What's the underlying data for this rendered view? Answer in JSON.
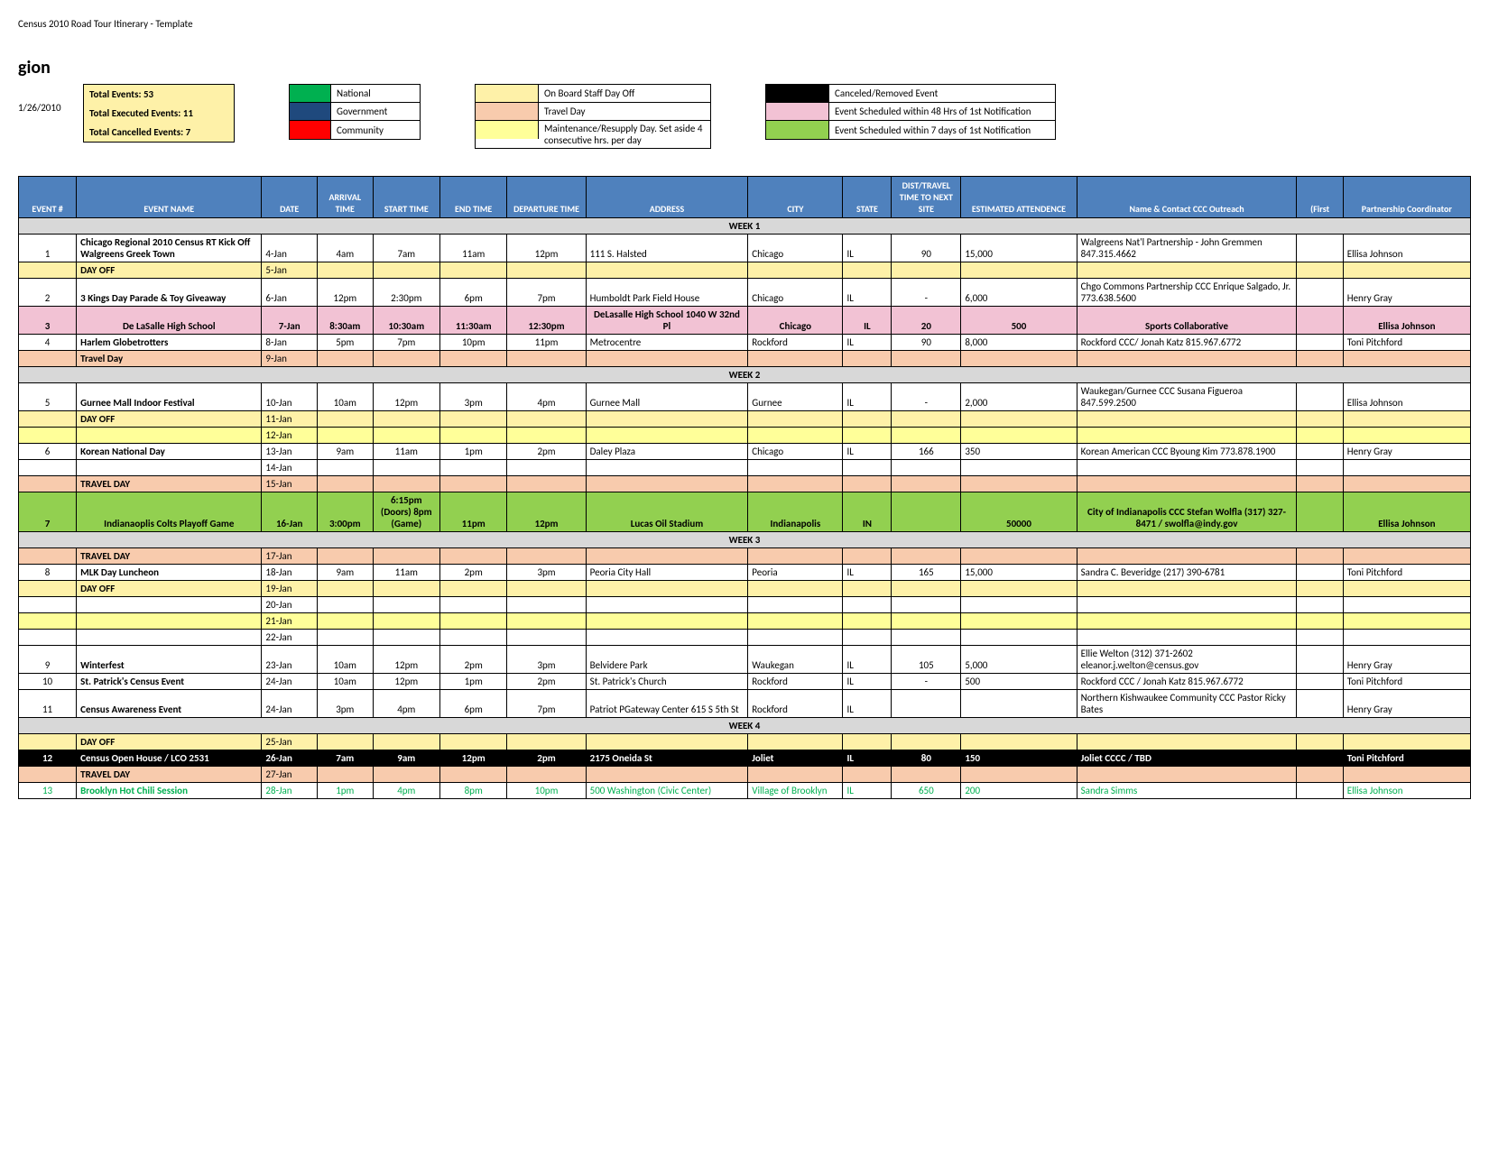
{
  "title": "Census 2010 Road Tour Itinerary - Template",
  "region_label": "gion",
  "date_stamp": "1/26/2010",
  "totals": {
    "total_events": "Total Events:  53",
    "executed": "Total Executed Events:  11",
    "cancelled": "Total Cancelled Events:  7"
  },
  "legend1": [
    {
      "color": "#00b050",
      "label": "National"
    },
    {
      "color": "#1f497d",
      "label": "Government"
    },
    {
      "color": "#ff0000",
      "label": "Community"
    }
  ],
  "legend2": [
    {
      "color": "#fef1a8",
      "label": "On Board Staff Day Off"
    },
    {
      "color": "#f8cbad",
      "label": "Travel Day"
    },
    {
      "color": "#ffff99",
      "label": "Maintenance/Resupply Day.  Set aside 4 consecutive hrs. per day"
    }
  ],
  "legend3": [
    {
      "color": "#000000",
      "label": "Canceled/Removed Event"
    },
    {
      "color": "#f2c2d4",
      "label": "Event Scheduled within 48 Hrs of 1st Notification"
    },
    {
      "color": "#92d050",
      "label": "Event Scheduled within 7 days of 1st Notification"
    }
  ],
  "columns": [
    "EVENT #",
    "EVENT NAME",
    "DATE",
    "ARRIVAL TIME",
    "START TIME",
    "END TIME",
    "DEPARTURE TIME",
    "ADDRESS",
    "CITY",
    "STATE",
    "DIST/TRAVEL TIME TO NEXT SITE",
    "ESTIMATED ATTENDENCE",
    "Name & Contact CCC Outreach",
    "(First",
    "Partnership Coordinator"
  ],
  "colors": {
    "dayoff": "#fef1a8",
    "travel": "#f8cbad",
    "maint": "#ffff99",
    "pink": "#f2c2d4",
    "green": "#92d050",
    "black": "#000000",
    "gray": "#d8d8d8",
    "header": "#4f81bd"
  },
  "weeks": [
    {
      "label": "WEEK 1",
      "rows": [
        {
          "type": "event",
          "bg": "",
          "num": "1",
          "name": "Chicago Regional 2010 Census RT Kick Off Walgreens Greek Town",
          "date": "4-Jan",
          "arr": "4am",
          "start": "7am",
          "end": "11am",
          "dep": "12pm",
          "addr": "111 S. Halsted",
          "city": "Chicago",
          "state": "IL",
          "dist": "90",
          "att": "15,000",
          "contact": "Walgreens Nat'l Partnership - John Gremmen 847.315.4662",
          "first": "",
          "coord": "Ellisa Johnson",
          "bold": true
        },
        {
          "type": "dayoff",
          "name": "DAY OFF",
          "date": "5-Jan"
        },
        {
          "type": "event",
          "bg": "",
          "num": "2",
          "name": "3 Kings Day Parade & Toy Giveaway",
          "date": "6-Jan",
          "arr": "12pm",
          "start": "2:30pm",
          "end": "6pm",
          "dep": "7pm",
          "addr": "Humboldt Park Field House",
          "city": "Chicago",
          "state": "IL",
          "dist": "-",
          "att": "6,000",
          "contact": "Chgo Commons Partnership CCC Enrique Salgado, Jr. 773.638.5600",
          "first": "",
          "coord": "Henry Gray",
          "bold": true
        },
        {
          "type": "event",
          "bg": "pink",
          "num": "3",
          "name": "De  LaSalle High School",
          "date": "7-Jan",
          "arr": "8:30am",
          "start": "10:30am",
          "end": "11:30am",
          "dep": "12:30pm",
          "addr": "DeLasalle High School 1040 W 32nd Pl",
          "city": "Chicago",
          "state": "IL",
          "dist": "20",
          "att": "500",
          "contact": "Sports Collaborative",
          "first": "",
          "coord": "Ellisa Johnson",
          "bold": true,
          "center": true
        },
        {
          "type": "event",
          "bg": "",
          "num": "4",
          "name": "Harlem Globetrotters",
          "date": "8-Jan",
          "arr": "5pm",
          "start": "7pm",
          "end": "10pm",
          "dep": "11pm",
          "addr": "Metrocentre",
          "city": "Rockford",
          "state": "IL",
          "dist": "90",
          "att": "8,000",
          "contact": "Rockford CCC/ Jonah Katz 815.967.6772",
          "first": "",
          "coord": "Toni Pitchford",
          "bold": true
        },
        {
          "type": "travel",
          "name": "Travel Day",
          "date": "9-Jan"
        }
      ]
    },
    {
      "label": "WEEK 2",
      "rows": [
        {
          "type": "event",
          "bg": "",
          "num": "5",
          "name": "Gurnee Mall Indoor Festival",
          "date": "10-Jan",
          "arr": "10am",
          "start": "12pm",
          "end": "3pm",
          "dep": "4pm",
          "addr": "Gurnee Mall",
          "city": "Gurnee",
          "state": "IL",
          "dist": "-",
          "att": "2,000",
          "contact": "Waukegan/Gurnee CCC  Susana Figueroa 847.599.2500",
          "first": "",
          "coord": "Ellisa Johnson",
          "bold": true
        },
        {
          "type": "dayoff",
          "name": "DAY OFF",
          "date": "11-Jan"
        },
        {
          "type": "maint",
          "name": "",
          "date": "12-Jan"
        },
        {
          "type": "event",
          "bg": "",
          "num": "6",
          "name": "Korean National Day",
          "date": "13-Jan",
          "arr": "9am",
          "start": "11am",
          "end": "1pm",
          "dep": "2pm",
          "addr": "Daley Plaza",
          "city": "Chicago",
          "state": "IL",
          "dist": "166",
          "att": "350",
          "contact": "Korean American CCC Byoung Kim 773.878.1900",
          "first": "",
          "coord": "Henry Gray",
          "bold": true
        },
        {
          "type": "blank",
          "name": "",
          "date": "14-Jan"
        },
        {
          "type": "travel",
          "name": "TRAVEL DAY",
          "date": "15-Jan"
        },
        {
          "type": "event",
          "bg": "green",
          "num": "7",
          "name": "Indianaoplis Colts Playoff Game",
          "date": "16-Jan",
          "arr": "3:00pm",
          "start": "6:15pm (Doors)  8pm (Game)",
          "end": "11pm",
          "dep": "12pm",
          "addr": "Lucas Oil Stadium",
          "city": "Indianapolis",
          "state": "IN",
          "dist": "",
          "att": "50000",
          "contact": "City of Indianapolis CCC       Stefan Wolfla (317) 327-8471 / swolfla@indy.gov",
          "first": "",
          "coord": "Ellisa Johnson",
          "bold": true,
          "center": true
        }
      ]
    },
    {
      "label": "WEEK 3",
      "rows": [
        {
          "type": "travel",
          "name": "TRAVEL DAY",
          "date": "17-Jan"
        },
        {
          "type": "event",
          "bg": "",
          "num": "8",
          "name": "MLK Day Luncheon",
          "date": "18-Jan",
          "arr": "9am",
          "start": "11am",
          "end": "2pm",
          "dep": "3pm",
          "addr": "Peoria City Hall",
          "city": "Peoria",
          "state": "IL",
          "dist": "165",
          "att": "15,000",
          "contact": "Sandra C. Beveridge (217) 390-6781",
          "first": "",
          "coord": "Toni Pitchford",
          "bold": true
        },
        {
          "type": "dayoff",
          "name": "DAY OFF",
          "date": "19-Jan"
        },
        {
          "type": "blank",
          "name": "",
          "date": "20-Jan"
        },
        {
          "type": "maint",
          "name": "",
          "date": "21-Jan"
        },
        {
          "type": "blank",
          "name": "",
          "date": "22-Jan"
        },
        {
          "type": "event",
          "bg": "",
          "num": "9",
          "name": "Winterfest",
          "date": "23-Jan",
          "arr": "10am",
          "start": "12pm",
          "end": "2pm",
          "dep": "3pm",
          "addr": "Belvidere Park",
          "city": "Waukegan",
          "state": "IL",
          "dist": "105",
          "att": "5,000",
          "contact": "Ellie Welton (312) 371-2602 eleanor.j.welton@census.gov",
          "first": "",
          "coord": "Henry Gray",
          "bold": true
        },
        {
          "type": "event",
          "bg": "",
          "num": "10",
          "name": "St. Patrick's Census Event",
          "date": "24-Jan",
          "arr": "10am",
          "start": "12pm",
          "end": "1pm",
          "dep": "2pm",
          "addr": "St. Patrick's Church",
          "city": "Rockford",
          "state": "IL",
          "dist": "-",
          "att": "500",
          "contact": "Rockford CCC /  Jonah Katz 815.967.6772",
          "first": "",
          "coord": "Toni Pitchford",
          "bold": true
        },
        {
          "type": "event",
          "bg": "",
          "num": "11",
          "name": "Census Awareness Event",
          "date": "24-Jan",
          "arr": "3pm",
          "start": "4pm",
          "end": "6pm",
          "dep": "7pm",
          "addr": "Patriot PGateway Center 615 S 5th St",
          "city": "Rockford",
          "state": "IL",
          "dist": "",
          "att": "",
          "contact": "Northern Kishwaukee Community CCC Pastor Ricky Bates",
          "first": "",
          "coord": "Henry Gray",
          "bold": true
        }
      ]
    },
    {
      "label": "WEEK 4",
      "rows": [
        {
          "type": "dayoff",
          "name": "DAY OFF",
          "date": "25-Jan"
        },
        {
          "type": "event",
          "bg": "black",
          "textcolor": "#ffffff",
          "num": "12",
          "name": "Census Open House /    LCO 2531",
          "date": "26-Jan",
          "arr": "7am",
          "start": "9am",
          "end": "12pm",
          "dep": "2pm",
          "addr": "2175 Oneida St",
          "city": "Joliet",
          "state": "IL",
          "dist": "80",
          "att": "150",
          "contact": "Joliet CCCC / TBD",
          "first": "",
          "coord": "Toni Pitchford",
          "bold": true
        },
        {
          "type": "travel",
          "name": "TRAVEL DAY",
          "date": "27-Jan"
        },
        {
          "type": "event",
          "bg": "",
          "textcolor": "#00b050",
          "num": "13",
          "name": "Brooklyn Hot Chili Session",
          "date": "28-Jan",
          "arr": "1pm",
          "start": "4pm",
          "end": "8pm",
          "dep": "10pm",
          "addr": "500 Washington (Civic Center)",
          "city": "Village of Brooklyn",
          "state": "IL",
          "dist": "650",
          "att": "200",
          "contact": "Sandra Simms",
          "first": "",
          "coord": "Ellisa Johnson",
          "bold": true
        }
      ]
    }
  ]
}
